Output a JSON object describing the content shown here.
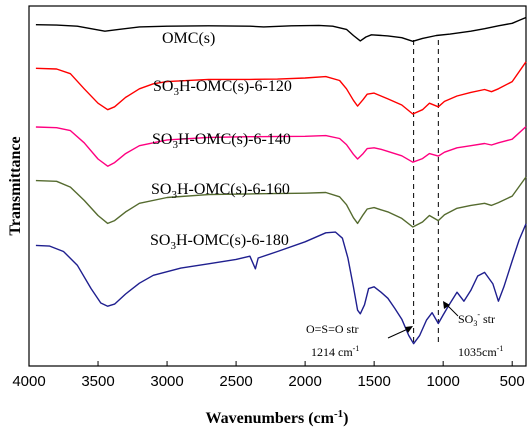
{
  "chart_data": {
    "type": "line",
    "xlabel_main": "Wavenumbers (cm",
    "xlabel_sup": "-1",
    "xlabel_end": ")",
    "ylabel": "Transmittance",
    "xlim": [
      4000,
      400
    ],
    "x_ticks": [
      {
        "value": 4000,
        "label": "4000"
      },
      {
        "value": 3500,
        "label": "3500"
      },
      {
        "value": 3000,
        "label": "3000"
      },
      {
        "value": 2500,
        "label": "2500"
      },
      {
        "value": 2000,
        "label": "2000"
      },
      {
        "value": 1500,
        "label": "1500"
      },
      {
        "value": 1000,
        "label": "1000"
      },
      {
        "value": 500,
        "label": "500"
      }
    ],
    "series": [
      {
        "name": "OMC(s)",
        "color": "#000000",
        "label_main": "OMC(s)",
        "label_sub": "",
        "label_rest": "",
        "points": [
          [
            3950,
            0.948
          ],
          [
            3800,
            0.947
          ],
          [
            3650,
            0.944
          ],
          [
            3550,
            0.937
          ],
          [
            3450,
            0.93
          ],
          [
            3350,
            0.935
          ],
          [
            3200,
            0.942
          ],
          [
            3000,
            0.944
          ],
          [
            2700,
            0.945
          ],
          [
            2400,
            0.944
          ],
          [
            2300,
            0.942
          ],
          [
            2100,
            0.945
          ],
          [
            1900,
            0.946
          ],
          [
            1800,
            0.944
          ],
          [
            1700,
            0.935
          ],
          [
            1650,
            0.918
          ],
          [
            1600,
            0.903
          ],
          [
            1560,
            0.914
          ],
          [
            1520,
            0.92
          ],
          [
            1400,
            0.917
          ],
          [
            1300,
            0.912
          ],
          [
            1220,
            0.902
          ],
          [
            1150,
            0.91
          ],
          [
            1050,
            0.918
          ],
          [
            950,
            0.922
          ],
          [
            800,
            0.93
          ],
          [
            700,
            0.937
          ],
          [
            600,
            0.945
          ],
          [
            500,
            0.952
          ],
          [
            450,
            0.96
          ],
          [
            400,
            0.968
          ]
        ]
      },
      {
        "name": "SO3H-OMC(s)-6-120",
        "color": "#ff0000",
        "label_main": "SO",
        "label_sub": "3",
        "label_rest": "H-OMC(s)-6-120",
        "points": [
          [
            3950,
            0.827
          ],
          [
            3800,
            0.825
          ],
          [
            3700,
            0.812
          ],
          [
            3600,
            0.77
          ],
          [
            3500,
            0.73
          ],
          [
            3430,
            0.712
          ],
          [
            3380,
            0.72
          ],
          [
            3300,
            0.746
          ],
          [
            3200,
            0.77
          ],
          [
            3100,
            0.784
          ],
          [
            3000,
            0.79
          ],
          [
            2700,
            0.796
          ],
          [
            2400,
            0.796
          ],
          [
            2200,
            0.797
          ],
          [
            2000,
            0.8
          ],
          [
            1850,
            0.804
          ],
          [
            1750,
            0.793
          ],
          [
            1700,
            0.77
          ],
          [
            1650,
            0.738
          ],
          [
            1620,
            0.722
          ],
          [
            1580,
            0.74
          ],
          [
            1550,
            0.755
          ],
          [
            1500,
            0.758
          ],
          [
            1450,
            0.75
          ],
          [
            1400,
            0.742
          ],
          [
            1300,
            0.725
          ],
          [
            1220,
            0.7
          ],
          [
            1150,
            0.712
          ],
          [
            1100,
            0.73
          ],
          [
            1035,
            0.72
          ],
          [
            990,
            0.735
          ],
          [
            900,
            0.75
          ],
          [
            800,
            0.76
          ],
          [
            700,
            0.768
          ],
          [
            650,
            0.762
          ],
          [
            600,
            0.77
          ],
          [
            500,
            0.79
          ],
          [
            400,
            0.845
          ]
        ]
      },
      {
        "name": "SO3H-OMC(s)-6-140",
        "color": "#ff0080",
        "label_main": "SO",
        "label_sub": "3",
        "label_rest": "H-OMC(s)-6-140",
        "points": [
          [
            3950,
            0.664
          ],
          [
            3800,
            0.662
          ],
          [
            3700,
            0.654
          ],
          [
            3600,
            0.62
          ],
          [
            3500,
            0.575
          ],
          [
            3430,
            0.555
          ],
          [
            3380,
            0.565
          ],
          [
            3300,
            0.59
          ],
          [
            3200,
            0.612
          ],
          [
            3000,
            0.628
          ],
          [
            2700,
            0.635
          ],
          [
            2400,
            0.637
          ],
          [
            2000,
            0.638
          ],
          [
            1850,
            0.64
          ],
          [
            1750,
            0.632
          ],
          [
            1700,
            0.615
          ],
          [
            1650,
            0.588
          ],
          [
            1620,
            0.575
          ],
          [
            1580,
            0.59
          ],
          [
            1550,
            0.604
          ],
          [
            1500,
            0.606
          ],
          [
            1450,
            0.602
          ],
          [
            1400,
            0.596
          ],
          [
            1300,
            0.584
          ],
          [
            1220,
            0.566
          ],
          [
            1150,
            0.576
          ],
          [
            1100,
            0.59
          ],
          [
            1035,
            0.583
          ],
          [
            990,
            0.594
          ],
          [
            900,
            0.606
          ],
          [
            800,
            0.612
          ],
          [
            700,
            0.618
          ],
          [
            650,
            0.614
          ],
          [
            600,
            0.62
          ],
          [
            500,
            0.63
          ],
          [
            400,
            0.665
          ]
        ]
      },
      {
        "name": "SO3H-OMC(s)-6-160",
        "color": "#556b2f",
        "label_main": "SO",
        "label_sub": "3",
        "label_rest": "H-OMC(s)-6-160",
        "points": [
          [
            3950,
            0.515
          ],
          [
            3800,
            0.513
          ],
          [
            3700,
            0.497
          ],
          [
            3600,
            0.46
          ],
          [
            3500,
            0.418
          ],
          [
            3430,
            0.396
          ],
          [
            3380,
            0.404
          ],
          [
            3300,
            0.428
          ],
          [
            3200,
            0.452
          ],
          [
            3000,
            0.468
          ],
          [
            2700,
            0.476
          ],
          [
            2400,
            0.478
          ],
          [
            2000,
            0.48
          ],
          [
            1850,
            0.482
          ],
          [
            1750,
            0.47
          ],
          [
            1700,
            0.448
          ],
          [
            1650,
            0.412
          ],
          [
            1620,
            0.396
          ],
          [
            1580,
            0.42
          ],
          [
            1550,
            0.436
          ],
          [
            1500,
            0.44
          ],
          [
            1450,
            0.434
          ],
          [
            1400,
            0.428
          ],
          [
            1300,
            0.41
          ],
          [
            1220,
            0.386
          ],
          [
            1150,
            0.4
          ],
          [
            1100,
            0.418
          ],
          [
            1035,
            0.404
          ],
          [
            990,
            0.42
          ],
          [
            900,
            0.438
          ],
          [
            800,
            0.446
          ],
          [
            700,
            0.452
          ],
          [
            650,
            0.446
          ],
          [
            600,
            0.454
          ],
          [
            500,
            0.472
          ],
          [
            400,
            0.525
          ]
        ]
      },
      {
        "name": "SO3H-OMC(s)-6-180",
        "color": "#1f1f8f",
        "label_main": "SO",
        "label_sub": "3",
        "label_rest": "H-OMC(s)-6-180",
        "points": [
          [
            3950,
            0.335
          ],
          [
            3850,
            0.333
          ],
          [
            3750,
            0.318
          ],
          [
            3650,
            0.28
          ],
          [
            3550,
            0.215
          ],
          [
            3480,
            0.175
          ],
          [
            3430,
            0.166
          ],
          [
            3380,
            0.172
          ],
          [
            3300,
            0.2
          ],
          [
            3200,
            0.23
          ],
          [
            3100,
            0.252
          ],
          [
            2900,
            0.272
          ],
          [
            2700,
            0.284
          ],
          [
            2500,
            0.296
          ],
          [
            2400,
            0.305
          ],
          [
            2360,
            0.27
          ],
          [
            2340,
            0.3
          ],
          [
            2200,
            0.318
          ],
          [
            2000,
            0.345
          ],
          [
            1850,
            0.37
          ],
          [
            1780,
            0.372
          ],
          [
            1730,
            0.355
          ],
          [
            1690,
            0.3
          ],
          [
            1650,
            0.22
          ],
          [
            1620,
            0.155
          ],
          [
            1600,
            0.145
          ],
          [
            1570,
            0.17
          ],
          [
            1540,
            0.215
          ],
          [
            1500,
            0.22
          ],
          [
            1450,
            0.205
          ],
          [
            1400,
            0.188
          ],
          [
            1350,
            0.16
          ],
          [
            1300,
            0.13
          ],
          [
            1250,
            0.085
          ],
          [
            1214,
            0.062
          ],
          [
            1170,
            0.085
          ],
          [
            1120,
            0.128
          ],
          [
            1080,
            0.148
          ],
          [
            1035,
            0.118
          ],
          [
            1000,
            0.142
          ],
          [
            960,
            0.168
          ],
          [
            900,
            0.205
          ],
          [
            850,
            0.18
          ],
          [
            800,
            0.21
          ],
          [
            750,
            0.25
          ],
          [
            700,
            0.26
          ],
          [
            640,
            0.228
          ],
          [
            600,
            0.18
          ],
          [
            560,
            0.22
          ],
          [
            500,
            0.292
          ],
          [
            450,
            0.35
          ],
          [
            400,
            0.395
          ]
        ]
      }
    ],
    "vlines": [
      1214,
      1035
    ],
    "annotations": [
      {
        "name": "os-o-annotation",
        "line1": "O=S=O str",
        "line2_main": "1214 cm",
        "line2_sup": "-1"
      },
      {
        "name": "so3-annotation",
        "line1_main": "SO",
        "line1_sub": "3",
        "line1_sup": "-",
        "line1_rest": " str",
        "line2_main": "1035cm",
        "line2_sup": "-1"
      }
    ]
  }
}
